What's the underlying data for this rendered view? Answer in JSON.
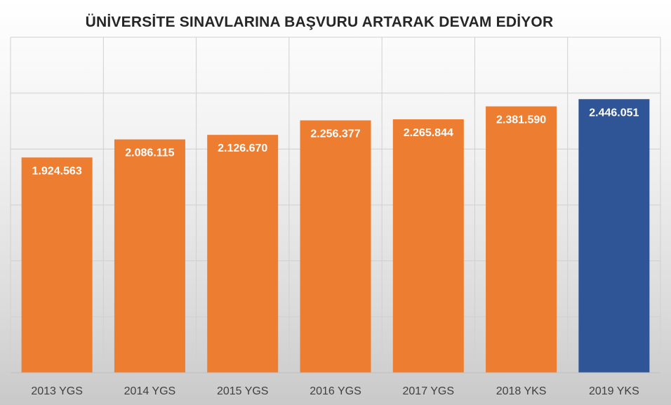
{
  "chart_data": {
    "type": "bar",
    "title": "ÜNİVERSİTE SINAVLARINA BAŞVURU ARTARAK DEVAM EDİYOR",
    "xlabel": "",
    "ylabel": "",
    "categories": [
      "2013 YGS",
      "2014 YGS",
      "2015 YGS",
      "2016 YGS",
      "2017 YGS",
      "2018 YKS",
      "2019 YKS"
    ],
    "values": [
      1924563,
      2086115,
      2126670,
      2256377,
      2265844,
      2381590,
      2446051
    ],
    "value_labels": [
      "1.924.563",
      "2.086.115",
      "2.126.670",
      "2.256.377",
      "2.265.844",
      "2.381.590",
      "2.446.051"
    ],
    "ylim": [
      0,
      3000000
    ],
    "y_tick_step": 500000,
    "y_tick_labels_visible": false,
    "grid": true,
    "legend": "none",
    "colors": {
      "bar": "#ED7D31",
      "highlight_bar": "#2F5597",
      "highlight_category": "2019 YKS",
      "value_label": "#FFFFFF",
      "grid": "#D0D0D0",
      "axis_text": "#404040"
    }
  }
}
